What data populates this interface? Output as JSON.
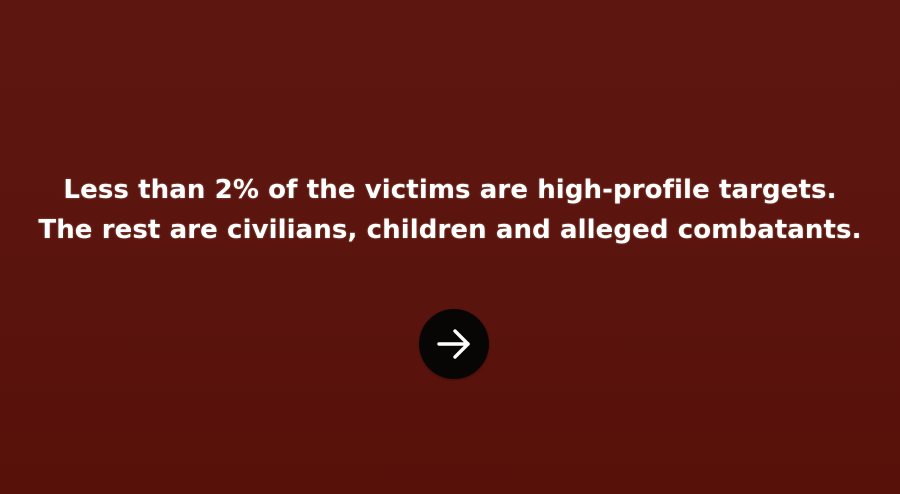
{
  "slide": {
    "line1": "Less than 2% of the victims are high-profile targets.",
    "line2": "The rest are civilians, children and alleged combatants."
  },
  "controls": {
    "next_icon": "arrow-right-icon"
  },
  "colors": {
    "background": "#5c150f",
    "text": "#ffffff",
    "button": "#070605",
    "icon": "#ffffff"
  }
}
